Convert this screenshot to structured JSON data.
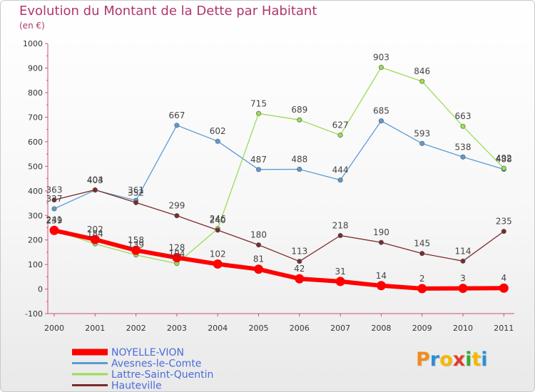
{
  "title": "Evolution du Montant de la Dette par Habitant",
  "subtitle": "(en €)",
  "logo": {
    "text": "Proxiti",
    "letters": [
      {
        "ch": "P",
        "color": "#f28c1f"
      },
      {
        "ch": "r",
        "color": "#2c8fd6"
      },
      {
        "ch": "o",
        "color": "#f5b800"
      },
      {
        "ch": "x",
        "color": "#e53c2e"
      },
      {
        "ch": "i",
        "color": "#3aaa35"
      },
      {
        "ch": "t",
        "color": "#f5b800"
      },
      {
        "ch": "i",
        "color": "#2c8fd6"
      }
    ]
  },
  "chart_data": {
    "type": "line",
    "title": "Evolution du Montant de la Dette par Habitant",
    "ylabel": "(en €)",
    "xlabel": "",
    "ylim": [
      -100,
      1000
    ],
    "yticks": [
      -100,
      0,
      100,
      200,
      300,
      400,
      500,
      600,
      700,
      800,
      900,
      1000
    ],
    "grid": false,
    "legend_position": "bottom-left",
    "categories": [
      "2000",
      "2001",
      "2002",
      "2003",
      "2004",
      "2005",
      "2006",
      "2007",
      "2008",
      "2009",
      "2010",
      "2011"
    ],
    "series": [
      {
        "name": "NOYELLE-VION",
        "color": "#ff0000",
        "values": [
          239,
          202,
          158,
          128,
          102,
          81,
          42,
          31,
          14,
          2,
          3,
          4
        ]
      },
      {
        "name": "Avesnes-le-Comte",
        "color": "#5b9bd5",
        "values": [
          327,
          403,
          361,
          667,
          602,
          487,
          488,
          444,
          685,
          593,
          538,
          488
        ]
      },
      {
        "name": "Lattre-Saint-Quentin",
        "color": "#99dd55",
        "values": [
          241,
          184,
          139,
          104,
          246,
          715,
          689,
          627,
          903,
          846,
          663,
          492
        ]
      },
      {
        "name": "Hauteville",
        "color": "#7b2b2b",
        "values": [
          363,
          404,
          352,
          299,
          240,
          180,
          113,
          218,
          190,
          145,
          114,
          235
        ]
      }
    ]
  }
}
